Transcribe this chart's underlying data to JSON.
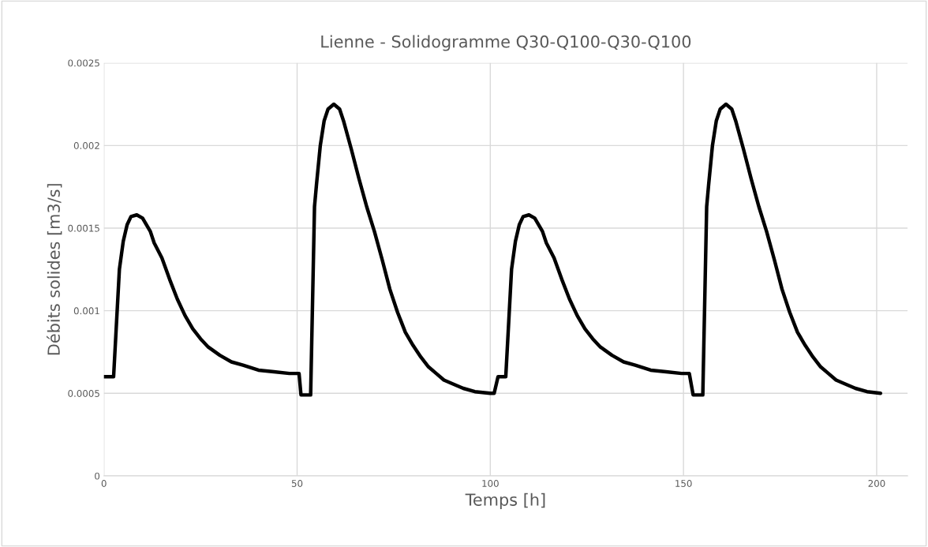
{
  "chart_data": {
    "type": "line",
    "title": "Lienne - Solidogramme Q30-Q100-Q30-Q100",
    "xlabel": "Temps [h]",
    "ylabel": "Débits solides [m3/s]",
    "xlim": [
      0,
      208
    ],
    "xticks": [
      0,
      50,
      100,
      150,
      200
    ],
    "ylim": [
      0,
      0.0025
    ],
    "yticks": [
      0,
      0.0005,
      0.001,
      0.0015,
      0.002,
      0.0025
    ],
    "grid": true,
    "marker": "none",
    "line_style": "solid",
    "series": [
      {
        "color": "#000000",
        "x": [
          0,
          2.5,
          4,
          5,
          6,
          7,
          8.5,
          10,
          12,
          13,
          15,
          17,
          19,
          21,
          23,
          25,
          27,
          30,
          33,
          36,
          40,
          44,
          48,
          50.5,
          51,
          53.5,
          54.5,
          55,
          56,
          57,
          58,
          59.5,
          61,
          62,
          64,
          66,
          68,
          70,
          72,
          74,
          76,
          78,
          80,
          82,
          84,
          86,
          88,
          90,
          93,
          96,
          100,
          101,
          102,
          104,
          105.5,
          106.5,
          107.5,
          108.5,
          110,
          111.5,
          113.5,
          114.5,
          116.5,
          118.5,
          120.5,
          122.5,
          124.5,
          126.5,
          128.5,
          131.5,
          134.5,
          137.5,
          141.5,
          145.5,
          149.5,
          151.5,
          152.5,
          155,
          156,
          156.5,
          157.5,
          158.5,
          159.5,
          161,
          162.5,
          163.5,
          165.5,
          167.5,
          169.5,
          171.5,
          173.5,
          175.5,
          177.5,
          179.5,
          181.5,
          183.5,
          185.5,
          187.5,
          189.5,
          191.5,
          194.5,
          197.5,
          201
        ],
        "values": [
          0.0006,
          0.0006,
          0.00125,
          0.00142,
          0.00152,
          0.00157,
          0.00158,
          0.00156,
          0.00148,
          0.00141,
          0.00132,
          0.00119,
          0.00107,
          0.00097,
          0.00089,
          0.00083,
          0.00078,
          0.00073,
          0.00069,
          0.00067,
          0.00064,
          0.00063,
          0.00062,
          0.00062,
          0.00049,
          0.00049,
          0.00163,
          0.00176,
          0.002,
          0.00215,
          0.00222,
          0.00225,
          0.00222,
          0.00215,
          0.00198,
          0.0018,
          0.00163,
          0.00148,
          0.00131,
          0.00113,
          0.00099,
          0.00087,
          0.00079,
          0.00072,
          0.00066,
          0.00062,
          0.00058,
          0.00056,
          0.00053,
          0.00051,
          0.0005,
          0.0005,
          0.0006,
          0.0006,
          0.00125,
          0.00142,
          0.00152,
          0.00157,
          0.00158,
          0.00156,
          0.00148,
          0.00141,
          0.00132,
          0.00119,
          0.00107,
          0.00097,
          0.00089,
          0.00083,
          0.00078,
          0.00073,
          0.00069,
          0.00067,
          0.00064,
          0.00063,
          0.00062,
          0.00062,
          0.00049,
          0.00049,
          0.00163,
          0.00176,
          0.002,
          0.00215,
          0.00222,
          0.00225,
          0.00222,
          0.00215,
          0.00198,
          0.0018,
          0.00163,
          0.00148,
          0.00131,
          0.00113,
          0.00099,
          0.00087,
          0.00079,
          0.00072,
          0.00066,
          0.00062,
          0.00058,
          0.00056,
          0.00053,
          0.00051,
          0.0005
        ]
      }
    ]
  }
}
